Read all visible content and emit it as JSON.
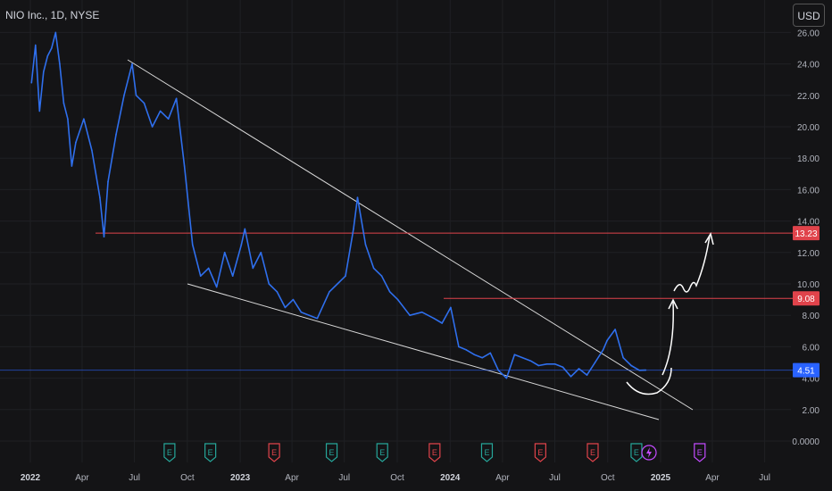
{
  "header": {
    "ticker": "NIO Inc., 1D, NYSE",
    "currency": "USD"
  },
  "colors": {
    "background": "#141416",
    "price_line": "#2f6fed",
    "resistance": "#e0434b",
    "current_price": "#2962ff",
    "trendline": "#d8d8d8",
    "grid": "#1f2024",
    "axis_text": "#b2b5be"
  },
  "chart_data": {
    "type": "line",
    "title": "NIO Inc., 1D, NYSE",
    "xlabel": "",
    "ylabel": "",
    "ylim": [
      0,
      26
    ],
    "x_ticks": [
      "2022",
      "Apr",
      "Jul",
      "Oct",
      "2023",
      "Apr",
      "Jul",
      "Oct",
      "2024",
      "Apr",
      "Jul",
      "Oct",
      "2025",
      "Apr",
      "Jul"
    ],
    "x_tick_dates": [
      "2022-01-01",
      "2022-04-01",
      "2022-07-01",
      "2022-10-01",
      "2023-01-01",
      "2023-04-01",
      "2023-07-01",
      "2023-10-01",
      "2024-01-01",
      "2024-04-01",
      "2024-07-01",
      "2024-10-01",
      "2025-01-01",
      "2025-04-01",
      "2025-07-01"
    ],
    "y_ticks": [
      "26.00",
      "24.00",
      "22.00",
      "20.00",
      "18.00",
      "16.00",
      "14.00",
      "12.00",
      "10.00",
      "8.00",
      "6.00",
      "4.00",
      "2.00",
      "0.0000"
    ],
    "y_tick_values": [
      26,
      24,
      22,
      20,
      18,
      16,
      14,
      12,
      10,
      8,
      6,
      4,
      2,
      0
    ],
    "series": [
      {
        "x": [
          "2022-01-03",
          "2022-01-10",
          "2022-01-17",
          "2022-01-24",
          "2022-01-31",
          "2022-02-07",
          "2022-02-14",
          "2022-02-21",
          "2022-02-28",
          "2022-03-07",
          "2022-03-14",
          "2022-03-21",
          "2022-04-04",
          "2022-04-18",
          "2022-05-02",
          "2022-05-09",
          "2022-05-16",
          "2022-05-30",
          "2022-06-13",
          "2022-06-27",
          "2022-07-04",
          "2022-07-18",
          "2022-08-01",
          "2022-08-15",
          "2022-08-29",
          "2022-09-12",
          "2022-09-26",
          "2022-10-10",
          "2022-10-24",
          "2022-11-07",
          "2022-11-21",
          "2022-12-05",
          "2022-12-19",
          "2023-01-03",
          "2023-01-09",
          "2023-01-23",
          "2023-02-06",
          "2023-02-20",
          "2023-03-06",
          "2023-03-20",
          "2023-04-03",
          "2023-04-17",
          "2023-05-01",
          "2023-05-15",
          "2023-06-05",
          "2023-06-19",
          "2023-07-03",
          "2023-07-17",
          "2023-07-24",
          "2023-08-07",
          "2023-08-21",
          "2023-09-04",
          "2023-09-18",
          "2023-10-02",
          "2023-10-23",
          "2023-11-13",
          "2023-12-04",
          "2023-12-18",
          "2024-01-02",
          "2024-01-16",
          "2024-01-29",
          "2024-02-12",
          "2024-02-26",
          "2024-03-11",
          "2024-03-25",
          "2024-04-08",
          "2024-04-22",
          "2024-05-06",
          "2024-05-20",
          "2024-06-03",
          "2024-06-17",
          "2024-07-01",
          "2024-07-15",
          "2024-07-29",
          "2024-08-12",
          "2024-08-26",
          "2024-09-09",
          "2024-09-23",
          "2024-09-30",
          "2024-10-14",
          "2024-10-28",
          "2024-11-11",
          "2024-11-25",
          "2024-12-06"
        ],
        "y": [
          22.8,
          25.2,
          21.0,
          23.5,
          24.5,
          25.0,
          26.0,
          24.0,
          21.5,
          20.5,
          17.5,
          19.0,
          20.5,
          18.5,
          15.5,
          13.0,
          16.5,
          19.5,
          22.0,
          24.0,
          22.0,
          21.5,
          20.0,
          21.0,
          20.5,
          21.8,
          17.5,
          12.5,
          10.5,
          11.0,
          9.8,
          12.0,
          10.5,
          12.5,
          13.5,
          11.0,
          12.0,
          10.0,
          9.5,
          8.5,
          9.0,
          8.2,
          8.0,
          7.8,
          9.5,
          10.0,
          10.5,
          13.5,
          15.5,
          12.5,
          11.0,
          10.5,
          9.5,
          9.0,
          8.0,
          8.2,
          7.8,
          7.5,
          8.5,
          6.0,
          5.8,
          5.5,
          5.3,
          5.6,
          4.5,
          4.0,
          5.5,
          5.3,
          5.1,
          4.8,
          4.9,
          4.9,
          4.7,
          4.1,
          4.6,
          4.2,
          5.0,
          5.8,
          6.4,
          7.1,
          5.3,
          4.8,
          4.5,
          4.51
        ]
      }
    ],
    "resistance_levels": [
      13.23,
      9.08
    ],
    "current_price": 4.51,
    "price_labels": [
      "13.23",
      "9.08",
      "4.51"
    ],
    "earnings_markers": [
      {
        "date": "2022-08-31",
        "label": "E"
      },
      {
        "date": "2022-11-10",
        "label": "E"
      },
      {
        "date": "2023-03-01",
        "label": "E"
      },
      {
        "date": "2023-06-09",
        "label": "E"
      },
      {
        "date": "2023-09-05",
        "label": "E"
      },
      {
        "date": "2023-12-05",
        "label": "E"
      },
      {
        "date": "2024-03-05",
        "label": "E"
      },
      {
        "date": "2024-06-06",
        "label": "E"
      },
      {
        "date": "2024-09-05",
        "label": "E"
      },
      {
        "date": "2024-11-20",
        "label": "E"
      },
      {
        "date": "2025-03-10",
        "label": "E"
      }
    ],
    "grid": true,
    "legend": "none"
  }
}
